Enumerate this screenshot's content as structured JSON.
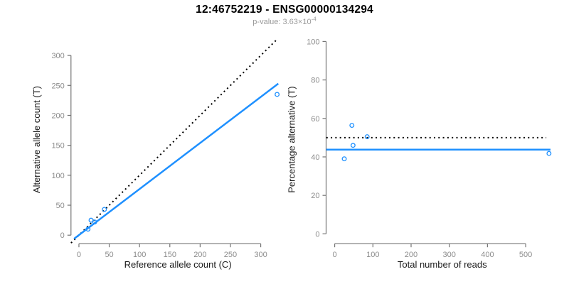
{
  "header": {
    "title": "12:46752219 - ENSG00000134294",
    "subtitle_prefix": "p-value: 3.63×10",
    "subtitle_exponent": "-4"
  },
  "colors": {
    "accent_blue": "#1E90FF",
    "axis_gray": "#757575",
    "tick_label_gray": "#8c8c8c",
    "axis_title_black": "#1a1a1a",
    "dotted_black": "#000000"
  },
  "chart_data": [
    {
      "type": "scatter",
      "xlabel": "Reference allele count (C)",
      "ylabel": "Alternative allele count (T)",
      "xticks": [
        0,
        50,
        100,
        150,
        200,
        250,
        300
      ],
      "yticks": [
        0,
        50,
        100,
        150,
        200,
        250,
        300
      ],
      "xlim": [
        -13.1,
        339.8
      ],
      "ylim": [
        -14.2,
        333.3
      ],
      "grid": false,
      "points": [
        [
          15,
          10
        ],
        [
          20,
          25
        ],
        [
          26,
          22
        ],
        [
          42,
          43
        ],
        [
          327,
          235
        ]
      ],
      "lines": [
        {
          "name": "identity-line",
          "style": "dotted",
          "color": "#000000",
          "x1": -13,
          "y1": -13,
          "x2": 328,
          "y2": 328
        },
        {
          "name": "regression-line",
          "style": "solid",
          "color": "#1E90FF",
          "x1": -8,
          "y1": -6,
          "x2": 329,
          "y2": 253
        }
      ]
    },
    {
      "type": "scatter",
      "xlabel": "Total number of reads",
      "ylabel": "Percentage alternative (T)",
      "xticks": [
        0,
        100,
        200,
        300,
        400,
        500
      ],
      "yticks": [
        0,
        20,
        40,
        60,
        80,
        100
      ],
      "xlim": [
        -22.5,
        585.5
      ],
      "ylim": [
        -5.1,
        103.1
      ],
      "grid": false,
      "points": [
        [
          25,
          39
        ],
        [
          45,
          56.4
        ],
        [
          48,
          46
        ],
        [
          85,
          50.5
        ],
        [
          561,
          41.8
        ]
      ],
      "lines": [
        {
          "name": "null-line",
          "style": "dotted",
          "color": "#000000",
          "x1": -22,
          "y1": 50,
          "x2": 554,
          "y2": 50
        },
        {
          "name": "mean-line",
          "style": "solid",
          "color": "#1E90FF",
          "x1": -22,
          "y1": 43.8,
          "x2": 565,
          "y2": 43.8
        }
      ]
    }
  ]
}
